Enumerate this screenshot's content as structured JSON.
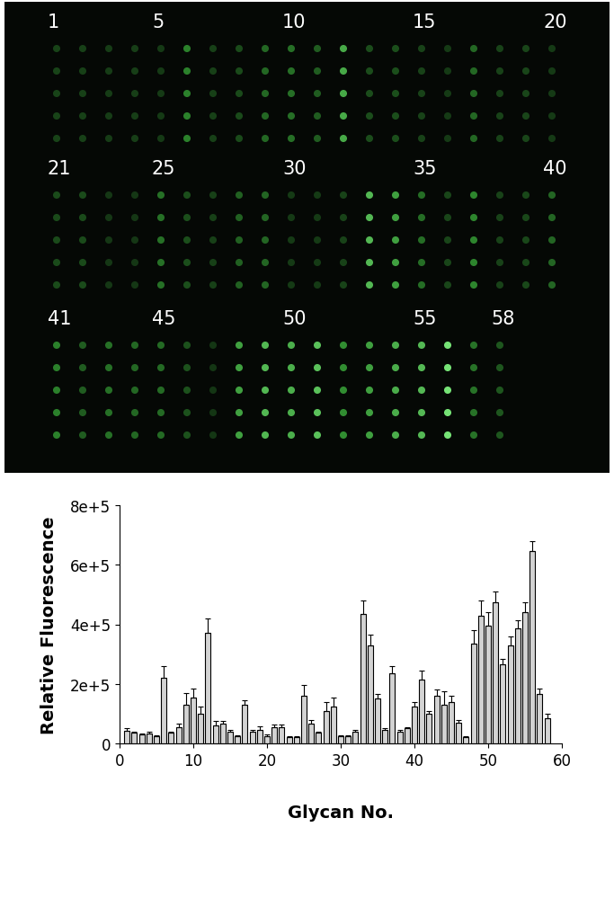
{
  "chart_data": [
    {
      "type": "spot_array",
      "labels": [
        1,
        5,
        10,
        15,
        20,
        21,
        25,
        30,
        35,
        40,
        41,
        45,
        50,
        55,
        58
      ]
    },
    {
      "type": "bar",
      "x": [
        1,
        2,
        3,
        4,
        5,
        6,
        7,
        8,
        9,
        10,
        11,
        12,
        13,
        14,
        15,
        16,
        17,
        18,
        19,
        20,
        21,
        22,
        23,
        24,
        25,
        26,
        27,
        28,
        29,
        30,
        31,
        32,
        33,
        34,
        35,
        36,
        37,
        38,
        39,
        40,
        41,
        42,
        43,
        44,
        45,
        46,
        47,
        48,
        49,
        50,
        51,
        52,
        53,
        54,
        55,
        56,
        57,
        58
      ],
      "values": [
        42000,
        35000,
        30000,
        32000,
        25000,
        220000,
        35000,
        55000,
        130000,
        155000,
        100000,
        370000,
        60000,
        65000,
        40000,
        25000,
        130000,
        40000,
        45000,
        25000,
        55000,
        55000,
        22000,
        22000,
        160000,
        65000,
        35000,
        110000,
        125000,
        25000,
        25000,
        40000,
        435000,
        330000,
        150000,
        45000,
        235000,
        40000,
        50000,
        125000,
        215000,
        100000,
        160000,
        130000,
        140000,
        70000,
        20000,
        335000,
        430000,
        395000,
        475000,
        265000,
        330000,
        385000,
        440000,
        645000,
        165000,
        85000
      ],
      "errors": [
        8000,
        4000,
        4000,
        8000,
        3000,
        40000,
        4000,
        10000,
        40000,
        30000,
        25000,
        50000,
        15000,
        10000,
        5000,
        3000,
        15000,
        5000,
        12000,
        5000,
        8000,
        8000,
        3000,
        3000,
        35000,
        12000,
        5000,
        30000,
        30000,
        3000,
        3000,
        5000,
        45000,
        35000,
        15000,
        5000,
        25000,
        5000,
        5000,
        15000,
        30000,
        10000,
        20000,
        45000,
        20000,
        8000,
        3000,
        45000,
        50000,
        45000,
        35000,
        20000,
        30000,
        30000,
        35000,
        35000,
        20000,
        15000
      ],
      "color": "#d3d3d3",
      "x_label": "Glycan No.",
      "y_label": "Relative Fluorescence",
      "xlim": [
        0,
        60
      ],
      "xticks": [
        0,
        10,
        20,
        30,
        40,
        50,
        60
      ],
      "ylim": [
        0,
        800000
      ],
      "yticks": [
        0,
        {
          "value": 200000,
          "label": "2e+5"
        },
        {
          "value": 400000,
          "label": "4e+5"
        },
        {
          "value": 600000,
          "label": "6e+5"
        },
        {
          "value": 800000,
          "label": "8e+5"
        }
      ]
    }
  ]
}
